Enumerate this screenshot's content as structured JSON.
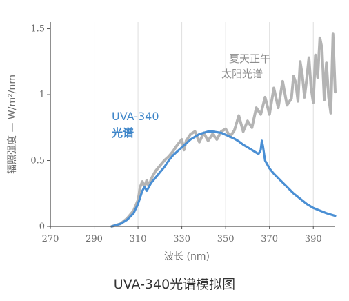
{
  "caption": "UVA-340光谱模拟图",
  "chart_data": {
    "type": "line",
    "xlabel": "波长 (nm)",
    "ylabel": "辐照强度 — W/m²/nm",
    "xlim": [
      270,
      400
    ],
    "ylim": [
      0,
      1.55
    ],
    "x_ticks": [
      270,
      290,
      310,
      330,
      350,
      370,
      390
    ],
    "y_ticks": [
      {
        "value": 0,
        "label": "0"
      },
      {
        "value": 0.5,
        "label": "0.5"
      },
      {
        "value": 1,
        "label": "1"
      },
      {
        "value": 1.5,
        "label": "1.5"
      }
    ],
    "grid": "vertical",
    "annotations": [
      {
        "text": "夏天正午",
        "series": "sunlight"
      },
      {
        "text": "太阳光谱",
        "series": "sunlight"
      },
      {
        "text": "UVA-340",
        "series": "uva340"
      },
      {
        "text": "光谱",
        "series": "uva340"
      }
    ],
    "series": [
      {
        "id": "uva340",
        "color": "#4a8fd4",
        "x": [
          298,
          302,
          305,
          308,
          310,
          312,
          313,
          314,
          316,
          318,
          320,
          322,
          324,
          326,
          328,
          330,
          332,
          334,
          336,
          338,
          340,
          342,
          344,
          346,
          348,
          350,
          352,
          354,
          356,
          358,
          360,
          362,
          364,
          365,
          366,
          366.5,
          367,
          368,
          370,
          372,
          375,
          378,
          381,
          384,
          387,
          390,
          393,
          396,
          400
        ],
        "values": [
          0.0,
          0.02,
          0.05,
          0.1,
          0.17,
          0.27,
          0.3,
          0.27,
          0.33,
          0.37,
          0.41,
          0.45,
          0.5,
          0.54,
          0.57,
          0.6,
          0.63,
          0.66,
          0.68,
          0.7,
          0.71,
          0.72,
          0.72,
          0.715,
          0.71,
          0.695,
          0.68,
          0.665,
          0.645,
          0.62,
          0.6,
          0.58,
          0.56,
          0.55,
          0.58,
          0.65,
          0.61,
          0.5,
          0.44,
          0.4,
          0.35,
          0.3,
          0.25,
          0.21,
          0.17,
          0.14,
          0.12,
          0.1,
          0.08
        ]
      },
      {
        "id": "sunlight",
        "color": "#b4b4b4",
        "x": [
          298,
          302,
          305,
          308,
          310,
          311,
          312,
          313,
          314,
          315,
          316,
          318,
          320,
          322,
          324,
          326,
          328,
          330,
          331,
          332,
          334,
          336,
          338,
          340,
          342,
          344,
          346,
          348,
          350,
          352,
          354,
          356,
          358,
          360,
          362,
          364,
          366,
          368,
          370,
          372,
          374,
          376,
          378,
          380,
          381,
          382,
          383,
          384,
          385,
          386,
          387,
          388,
          389,
          390,
          391,
          392,
          393,
          394,
          395,
          396,
          397,
          398,
          399,
          400
        ],
        "values": [
          0.0,
          0.02,
          0.06,
          0.12,
          0.2,
          0.3,
          0.34,
          0.3,
          0.35,
          0.3,
          0.36,
          0.42,
          0.46,
          0.5,
          0.53,
          0.57,
          0.62,
          0.66,
          0.58,
          0.65,
          0.7,
          0.72,
          0.64,
          0.71,
          0.65,
          0.7,
          0.66,
          0.72,
          0.74,
          0.68,
          0.73,
          0.84,
          0.72,
          0.8,
          0.75,
          0.9,
          0.85,
          0.98,
          0.85,
          1.05,
          0.9,
          1.1,
          0.92,
          0.97,
          1.14,
          1.09,
          0.95,
          1.25,
          1.15,
          0.98,
          1.12,
          1.28,
          1.05,
          0.94,
          1.3,
          1.13,
          1.43,
          1.35,
          0.96,
          1.24,
          0.98,
          0.86,
          1.46,
          1.02
        ]
      }
    ]
  }
}
